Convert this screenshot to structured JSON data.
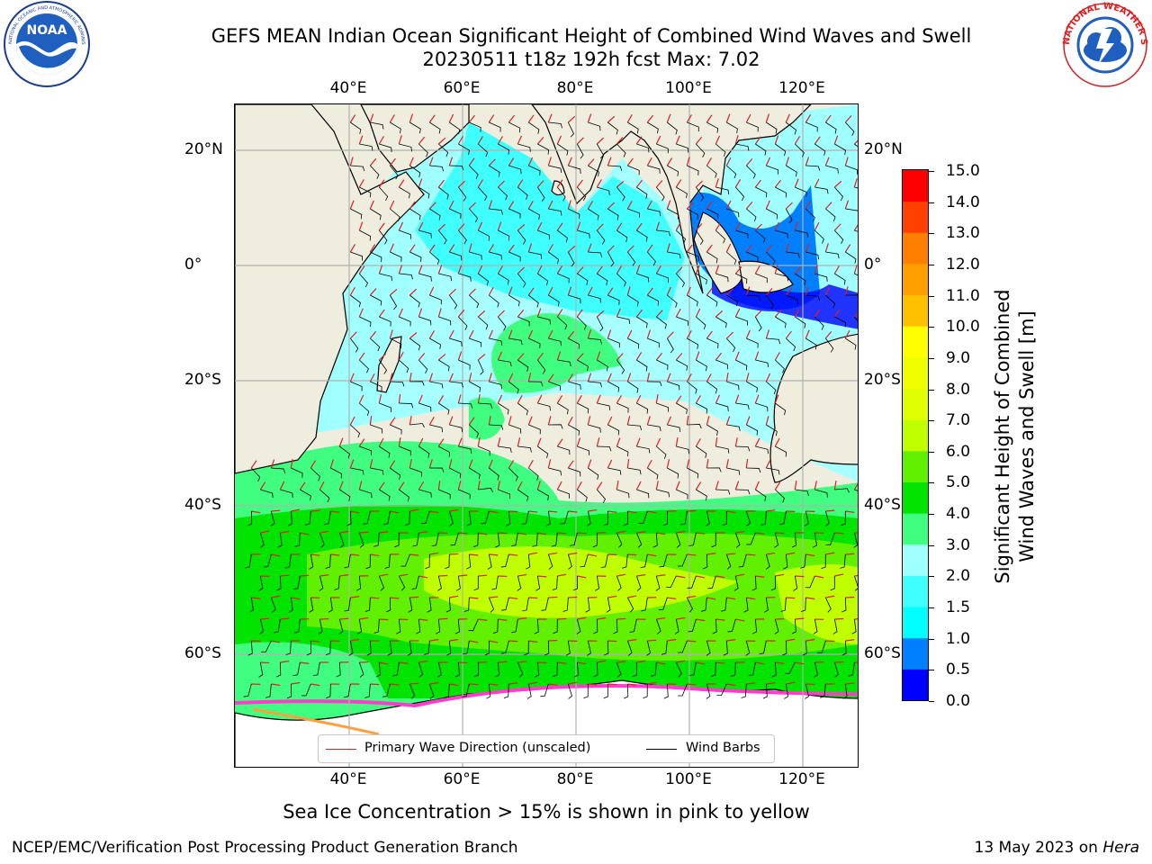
{
  "header": {
    "title_line1": "GEFS MEAN Indian Ocean Significant Height of Combined Wind Waves and Swell",
    "title_line2": "20230511 t18z 192h fcst   Max: 7.02"
  },
  "logos": {
    "left": {
      "name": "noaa-logo",
      "text": "NOAA",
      "ring_text": "NATIONAL OCEANIC AND ATMOSPHERIC ADMINISTRATION · U.S. DEPARTMENT OF COMMERCE"
    },
    "right": {
      "name": "nws-logo",
      "ring_text": "NATIONAL WEATHER SERVICE"
    }
  },
  "map": {
    "longitude_ticks": [
      "40°E",
      "60°E",
      "80°E",
      "100°E",
      "120°E"
    ],
    "latitude_ticks_left": [
      "20°N",
      "0°",
      "20°S",
      "40°S",
      "60°S"
    ],
    "latitude_ticks_right": [
      "20°N",
      "0°",
      "20°S",
      "40°S",
      "60°S"
    ],
    "colors": {
      "land": "#efeddd",
      "ice": "#ffffff",
      "ice_edge": "#ff3ccc",
      "wave_arrow": "#e02020",
      "wind_barb": "#000000",
      "grid": "#b0b0b0"
    },
    "legend": {
      "wave_direction": "Primary Wave Direction (unscaled)",
      "wind_barbs": "Wind Barbs"
    }
  },
  "colorbar": {
    "label_line1": "Significant Height of Combined",
    "label_line2": "Wind Waves and Swell [m]",
    "ticks": [
      "15.0",
      "14.0",
      "13.0",
      "12.0",
      "11.0",
      "10.0",
      "9.0",
      "8.0",
      "7.0",
      "6.0",
      "5.0",
      "4.0",
      "3.0",
      "2.0",
      "1.5",
      "1.0",
      "0.5",
      "0.0"
    ],
    "bins": [
      {
        "from": 0.0,
        "to": 0.5,
        "color": "#0000ff"
      },
      {
        "from": 0.5,
        "to": 1.0,
        "color": "#0080ff"
      },
      {
        "from": 1.0,
        "to": 1.5,
        "color": "#00ffff"
      },
      {
        "from": 1.5,
        "to": 2.0,
        "color": "#40ffff"
      },
      {
        "from": 2.0,
        "to": 3.0,
        "color": "#a0ffff"
      },
      {
        "from": 3.0,
        "to": 4.0,
        "color": "#40ff80"
      },
      {
        "from": 4.0,
        "to": 5.0,
        "color": "#00e400"
      },
      {
        "from": 5.0,
        "to": 6.0,
        "color": "#60f000"
      },
      {
        "from": 6.0,
        "to": 7.0,
        "color": "#c0ff00"
      },
      {
        "from": 7.0,
        "to": 8.0,
        "color": "#e0ff00"
      },
      {
        "from": 8.0,
        "to": 9.0,
        "color": "#f0ff00"
      },
      {
        "from": 9.0,
        "to": 10.0,
        "color": "#ffff00"
      },
      {
        "from": 10.0,
        "to": 11.0,
        "color": "#ffc000"
      },
      {
        "from": 11.0,
        "to": 12.0,
        "color": "#ffa000"
      },
      {
        "from": 12.0,
        "to": 13.0,
        "color": "#ff8000"
      },
      {
        "from": 13.0,
        "to": 14.0,
        "color": "#ff4000"
      },
      {
        "from": 14.0,
        "to": 15.0,
        "color": "#ff0000"
      }
    ]
  },
  "subcaption": "Sea Ice Concentration > 15% is shown in pink to yellow",
  "footer": {
    "left": "NCEP/EMC/Verification Post Processing Product Generation Branch",
    "right_date": "13 May 2023 on ",
    "right_host": "Hera"
  }
}
